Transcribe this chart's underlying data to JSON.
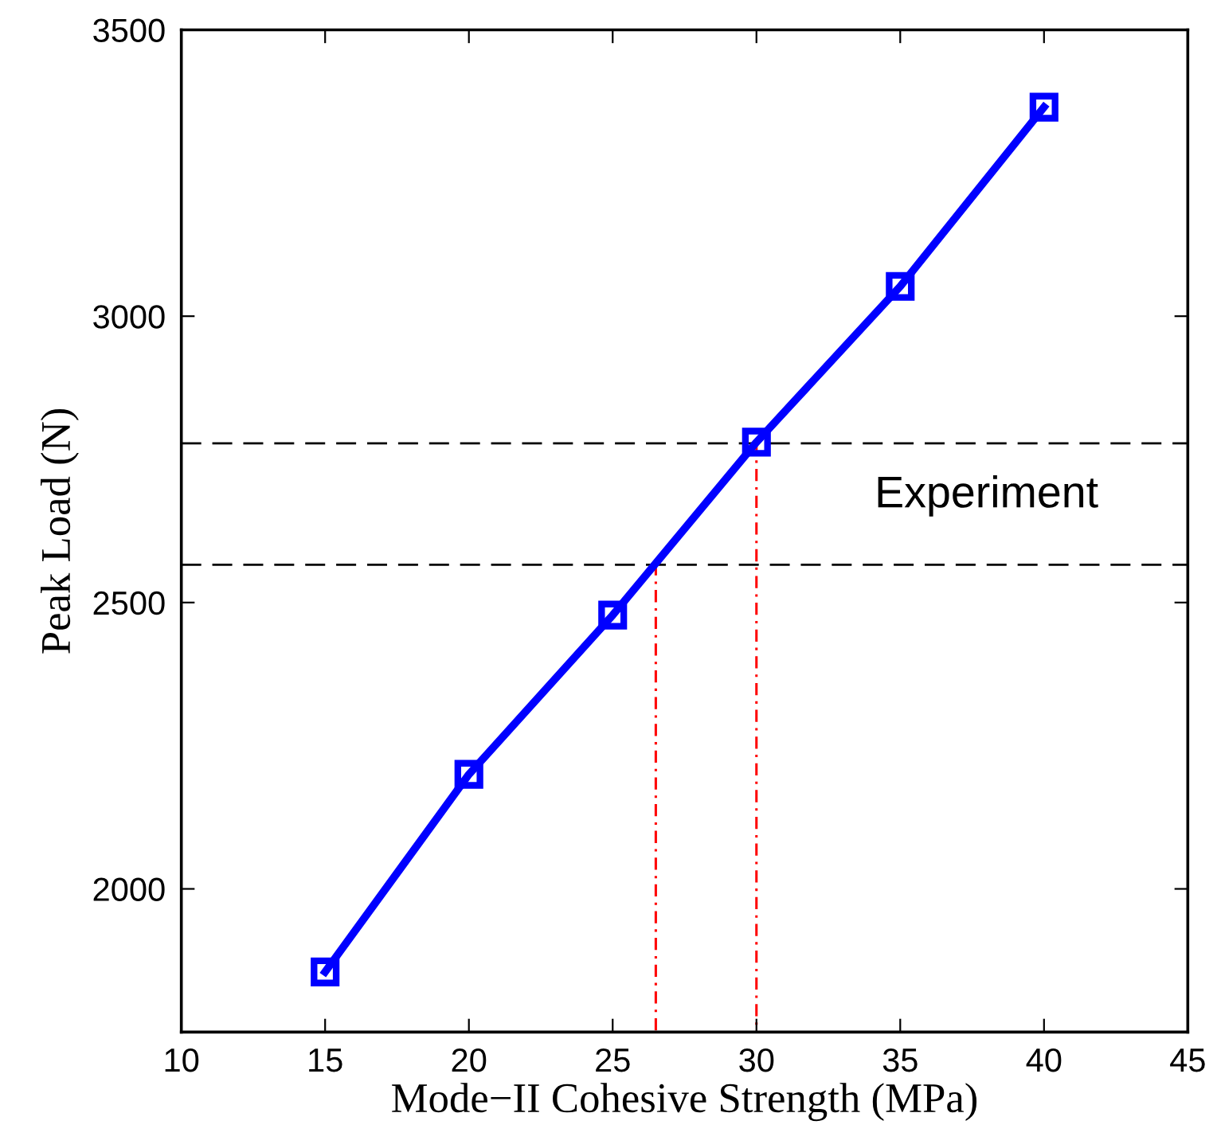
{
  "chart_data": {
    "type": "line",
    "xlabel": "Mode−II Cohesive Strength (MPa)",
    "ylabel": "Peak Load (N)",
    "x": [
      15,
      20,
      25,
      30,
      35,
      40
    ],
    "series": [
      {
        "color": "#0000ff",
        "values": [
          1855,
          2200,
          2478,
          2780,
          3052,
          3365
        ],
        "marker": "square",
        "line_style": "solid"
      }
    ],
    "ref_lines": [
      {
        "axis": "y",
        "value": 2778,
        "color": "#000000",
        "line_style": "dashed"
      },
      {
        "axis": "y",
        "value": 2566,
        "color": "#000000",
        "line_style": "dashed"
      },
      {
        "axis": "x",
        "value": 26.5,
        "color": "#ff0000",
        "line_style": "dashdot"
      },
      {
        "axis": "x",
        "value": 30,
        "color": "#ff0000",
        "line_style": "dashdot"
      }
    ],
    "annotations": [
      "Experiment"
    ],
    "xlim": [
      10,
      45
    ],
    "xticks": [
      10,
      15,
      20,
      25,
      30,
      35,
      40,
      45
    ],
    "ylim": [
      1750,
      3500
    ],
    "yticks": [
      2000,
      2500,
      3000,
      3500
    ],
    "grid": false,
    "legend": false
  }
}
